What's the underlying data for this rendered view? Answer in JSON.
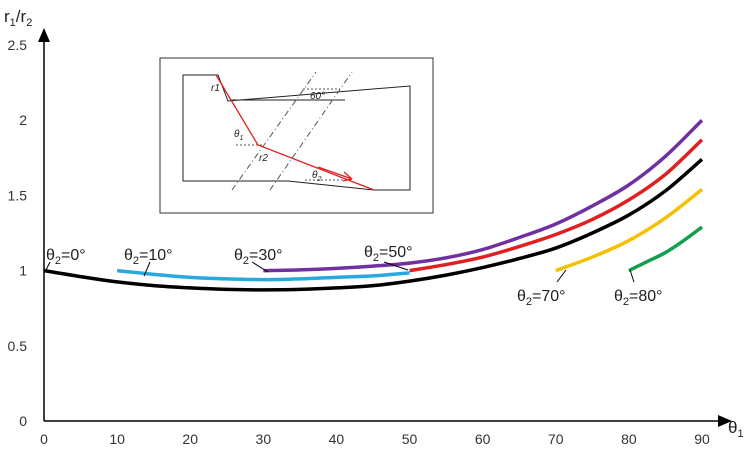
{
  "chart_data": {
    "type": "line",
    "xlabel": "θ1",
    "ylabel": "r1/r2",
    "xlim": [
      0,
      90
    ],
    "ylim": [
      0,
      2.5
    ],
    "xticks": [
      0,
      10,
      20,
      30,
      40,
      50,
      60,
      70,
      80,
      90
    ],
    "yticks": [
      0,
      0.5,
      1,
      1.5,
      2,
      2.5
    ],
    "grid": false,
    "legend": "none",
    "series": [
      {
        "label": "θ2=0°",
        "color": "#000000",
        "x": [
          0,
          5,
          10,
          15,
          20,
          25,
          30,
          35,
          40,
          45,
          50,
          55,
          60,
          65,
          70,
          75,
          80,
          85,
          90
        ],
        "y": [
          1.0,
          0.96,
          0.925,
          0.9,
          0.885,
          0.875,
          0.872,
          0.875,
          0.885,
          0.9,
          0.93,
          0.97,
          1.02,
          1.08,
          1.15,
          1.25,
          1.37,
          1.53,
          1.74
        ]
      },
      {
        "label": "θ2=10°",
        "color": "#29a8e0",
        "x": [
          10,
          15,
          20,
          25,
          30,
          35,
          40,
          45,
          50
        ],
        "y": [
          1.0,
          0.975,
          0.955,
          0.945,
          0.94,
          0.945,
          0.955,
          0.965,
          0.985
        ]
      },
      {
        "label": "θ2=30°",
        "color": "#7030a0",
        "x": [
          30,
          35,
          40,
          45,
          50,
          55,
          60,
          65,
          70,
          75,
          80,
          85,
          90
        ],
        "y": [
          1.0,
          1.005,
          1.015,
          1.03,
          1.05,
          1.085,
          1.14,
          1.22,
          1.31,
          1.43,
          1.57,
          1.76,
          2.0
        ]
      },
      {
        "label": "θ2=50°",
        "color": "#e02020",
        "x": [
          50,
          55,
          60,
          65,
          70,
          75,
          80,
          85,
          90
        ],
        "y": [
          1.0,
          1.04,
          1.09,
          1.16,
          1.24,
          1.34,
          1.47,
          1.64,
          1.87
        ]
      },
      {
        "label": "θ2=70°",
        "color": "#f5c000",
        "x": [
          70,
          75,
          80,
          85,
          90
        ],
        "y": [
          1.0,
          1.09,
          1.2,
          1.35,
          1.54
        ]
      },
      {
        "label": "θ2=80°",
        "color": "#10a050",
        "x": [
          80,
          82.5,
          85,
          87.5,
          90
        ],
        "y": [
          1.0,
          1.06,
          1.12,
          1.2,
          1.29
        ]
      }
    ],
    "annotations": {
      "inset_labels": {
        "r1": "r1",
        "r2": "r2",
        "theta1": "θ",
        "theta1_sub": "1",
        "theta2": "θ",
        "theta2_sub": "2",
        "angle60": "60°"
      }
    }
  }
}
